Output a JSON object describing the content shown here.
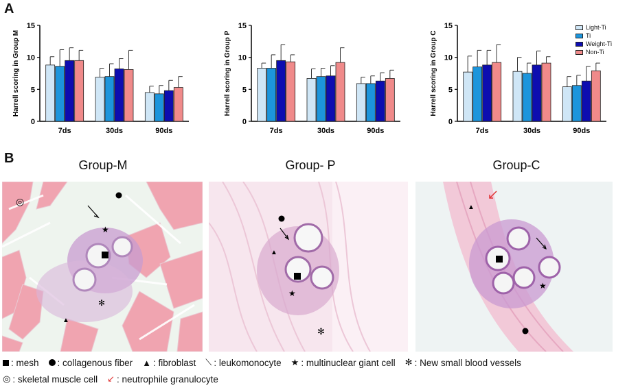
{
  "panels": {
    "a": "A",
    "b": "B"
  },
  "chart_data": [
    {
      "type": "bar",
      "ylabel": "Harrell scoring in Group M",
      "categories": [
        "7ds",
        "30ds",
        "90ds"
      ],
      "ylim": [
        0,
        15
      ],
      "yticks": [
        "0",
        "5",
        "10",
        "15"
      ],
      "series": [
        {
          "name": "Light-Ti",
          "values": [
            8.8,
            6.9,
            4.5
          ],
          "errors": [
            1.3,
            1.4,
            1.0
          ]
        },
        {
          "name": "Ti",
          "values": [
            8.6,
            7.0,
            4.3
          ],
          "errors": [
            2.6,
            2.0,
            1.3
          ]
        },
        {
          "name": "Weight-Ti",
          "values": [
            9.5,
            8.2,
            4.8
          ],
          "errors": [
            2.0,
            1.6,
            1.6
          ]
        },
        {
          "name": "Non-Ti",
          "values": [
            9.5,
            8.1,
            5.3
          ],
          "errors": [
            1.6,
            3.0,
            1.7
          ]
        }
      ]
    },
    {
      "type": "bar",
      "ylabel": "Harrell scoring in Group P",
      "categories": [
        "7ds",
        "30ds",
        "90ds"
      ],
      "ylim": [
        0,
        15
      ],
      "yticks": [
        "0",
        "5",
        "10",
        "15"
      ],
      "series": [
        {
          "name": "Light-Ti",
          "values": [
            8.3,
            6.7,
            5.9
          ],
          "errors": [
            0.8,
            1.5,
            1.0
          ]
        },
        {
          "name": "Ti",
          "values": [
            8.3,
            7.0,
            5.9
          ],
          "errors": [
            2.1,
            1.3,
            1.2
          ]
        },
        {
          "name": "Weight-Ti",
          "values": [
            9.5,
            7.1,
            6.3
          ],
          "errors": [
            2.5,
            1.6,
            1.3
          ]
        },
        {
          "name": "Non-Ti",
          "values": [
            9.3,
            9.2,
            6.7
          ],
          "errors": [
            1.1,
            2.3,
            1.3
          ]
        }
      ]
    },
    {
      "type": "bar",
      "ylabel": "Harrell scoring in Group C",
      "categories": [
        "7ds",
        "30ds",
        "90ds"
      ],
      "ylim": [
        0,
        15
      ],
      "yticks": [
        "0",
        "5",
        "10",
        "15"
      ],
      "series": [
        {
          "name": "Light-Ti",
          "values": [
            7.7,
            7.8,
            5.4
          ],
          "errors": [
            2.5,
            2.2,
            1.6
          ]
        },
        {
          "name": "Ti",
          "values": [
            8.5,
            7.5,
            5.6
          ],
          "errors": [
            2.6,
            1.6,
            1.6
          ]
        },
        {
          "name": "Weight-Ti",
          "values": [
            8.8,
            8.8,
            6.3
          ],
          "errors": [
            2.3,
            2.2,
            2.3
          ]
        },
        {
          "name": "Non-Ti",
          "values": [
            9.2,
            9.1,
            7.9
          ],
          "errors": [
            2.8,
            1.0,
            1.2
          ]
        }
      ]
    }
  ],
  "legend": [
    {
      "label": "Light-Ti",
      "color": "#cfe6f6"
    },
    {
      "label": "Ti",
      "color": "#1c95dc"
    },
    {
      "label": "Weight-Ti",
      "color": "#0d0db0"
    },
    {
      "label": "Non-Ti",
      "color": "#f08a8a"
    }
  ],
  "groups": [
    "Group-M",
    "Group- P",
    "Group-C"
  ],
  "footer": {
    "mesh": ": mesh",
    "collagen": ": collagenous fiber",
    "fibroblast_sym": "▲",
    "fibroblast": ":  fibroblast",
    "leuko_sym": "⟍",
    "leuko": ": leukomonocyte",
    "giant_sym": "★",
    "giant": ": multinuclear giant cell",
    "vessels_sym": "✻",
    "vessels": ": New small blood vessels",
    "muscle_sym": "◎",
    "muscle": ": skeletal muscle cell",
    "neutro_sym": "↙",
    "neutro": ": neutrophile granulocyte"
  }
}
